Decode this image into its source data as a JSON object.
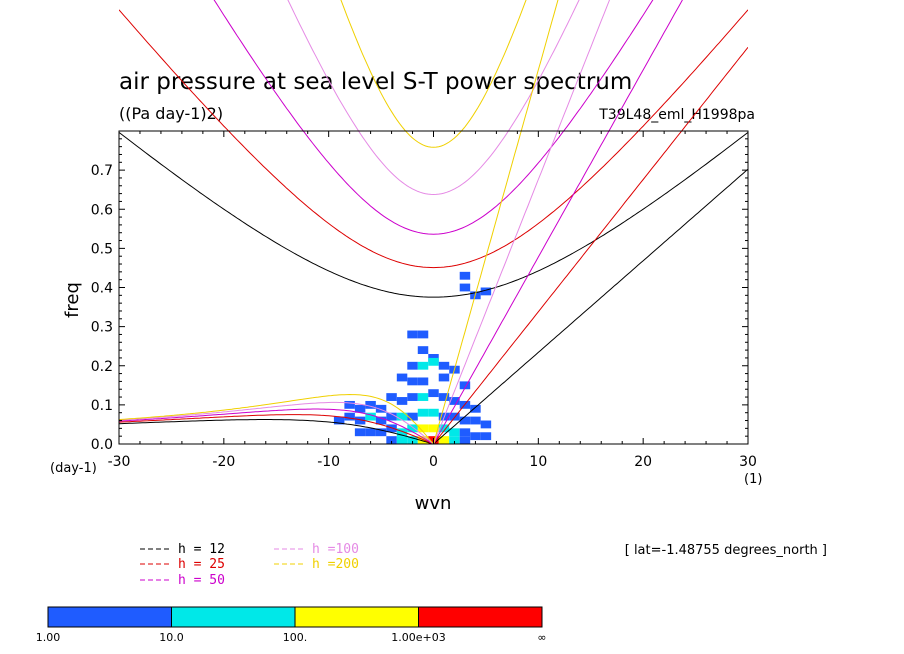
{
  "chart_data": {
    "type": "heatmap",
    "title": "air pressure at sea level S-T power spectrum",
    "units": "((Pa day-1)2)",
    "run_label": "T39L48_eml_H1998pa",
    "xlabel": "wvn",
    "ylabel": "freq",
    "y_unit_label": "(day-1)",
    "x_unit_label": "(1)",
    "xlim": [
      -30,
      30
    ],
    "ylim": [
      0,
      0.8
    ],
    "x_ticks": [
      "-30",
      "-20",
      "-10",
      "0",
      "10",
      "20",
      "30"
    ],
    "y_ticks": [
      "0.0",
      "0.1",
      "0.2",
      "0.3",
      "0.4",
      "0.5",
      "0.6",
      "0.7"
    ],
    "lat_note": "[ lat=-1.48755 degrees_north ]",
    "dispersion_legend": [
      {
        "label": "h = 12",
        "color": "#000000"
      },
      {
        "label": "h = 25",
        "color": "#dd0000"
      },
      {
        "label": "h = 50",
        "color": "#cc00cc"
      },
      {
        "label": "h =100",
        "color": "#e58ae5"
      },
      {
        "label": "h =200",
        "color": "#f0d000"
      }
    ],
    "colorbar": {
      "labels": [
        "1.00",
        "10.0",
        "100.",
        "1.00e+03",
        "∞"
      ],
      "colors": [
        "#1f5cff",
        "#00e8e8",
        "#ffff00",
        "#ff0000"
      ]
    },
    "spectrum_cells": [
      {
        "x": -2,
        "y": 0.28,
        "level": 0
      },
      {
        "x": -1,
        "y": 0.28,
        "level": 0
      },
      {
        "x": 3,
        "y": 0.4,
        "level": 0
      },
      {
        "x": 4,
        "y": 0.38,
        "level": 0
      },
      {
        "x": 3,
        "y": 0.43,
        "level": 0
      },
      {
        "x": 5,
        "y": 0.39,
        "level": 0
      },
      {
        "x": -1,
        "y": 0.24,
        "level": 0
      },
      {
        "x": 0,
        "y": 0.22,
        "level": 0
      },
      {
        "x": -2,
        "y": 0.2,
        "level": 0
      },
      {
        "x": -1,
        "y": 0.2,
        "level": 1
      },
      {
        "x": 0,
        "y": 0.21,
        "level": 1
      },
      {
        "x": 1,
        "y": 0.2,
        "level": 0
      },
      {
        "x": 2,
        "y": 0.19,
        "level": 0
      },
      {
        "x": -3,
        "y": 0.17,
        "level": 0
      },
      {
        "x": -2,
        "y": 0.16,
        "level": 0
      },
      {
        "x": -1,
        "y": 0.16,
        "level": 0
      },
      {
        "x": 1,
        "y": 0.17,
        "level": 0
      },
      {
        "x": 3,
        "y": 0.15,
        "level": 0
      },
      {
        "x": -4,
        "y": 0.12,
        "level": 0
      },
      {
        "x": -3,
        "y": 0.11,
        "level": 0
      },
      {
        "x": -2,
        "y": 0.12,
        "level": 0
      },
      {
        "x": -1,
        "y": 0.12,
        "level": 1
      },
      {
        "x": 0,
        "y": 0.13,
        "level": 0
      },
      {
        "x": 1,
        "y": 0.12,
        "level": 0
      },
      {
        "x": 2,
        "y": 0.11,
        "level": 0
      },
      {
        "x": 3,
        "y": 0.1,
        "level": 0
      },
      {
        "x": 4,
        "y": 0.09,
        "level": 0
      },
      {
        "x": -8,
        "y": 0.1,
        "level": 0
      },
      {
        "x": -7,
        "y": 0.09,
        "level": 0
      },
      {
        "x": -6,
        "y": 0.1,
        "level": 0
      },
      {
        "x": -5,
        "y": 0.09,
        "level": 0
      },
      {
        "x": -9,
        "y": 0.06,
        "level": 0
      },
      {
        "x": -8,
        "y": 0.07,
        "level": 0
      },
      {
        "x": -7,
        "y": 0.06,
        "level": 0
      },
      {
        "x": -6,
        "y": 0.07,
        "level": 1
      },
      {
        "x": -5,
        "y": 0.06,
        "level": 0
      },
      {
        "x": -4,
        "y": 0.07,
        "level": 0
      },
      {
        "x": -3,
        "y": 0.07,
        "level": 1
      },
      {
        "x": -2,
        "y": 0.07,
        "level": 0
      },
      {
        "x": -1,
        "y": 0.08,
        "level": 1
      },
      {
        "x": 0,
        "y": 0.08,
        "level": 1
      },
      {
        "x": 1,
        "y": 0.07,
        "level": 0
      },
      {
        "x": 2,
        "y": 0.07,
        "level": 0
      },
      {
        "x": 3,
        "y": 0.06,
        "level": 0
      },
      {
        "x": 4,
        "y": 0.06,
        "level": 0
      },
      {
        "x": 5,
        "y": 0.05,
        "level": 0
      },
      {
        "x": -7,
        "y": 0.03,
        "level": 0
      },
      {
        "x": -6,
        "y": 0.03,
        "level": 0
      },
      {
        "x": -5,
        "y": 0.03,
        "level": 0
      },
      {
        "x": -4,
        "y": 0.04,
        "level": 0
      },
      {
        "x": -3,
        "y": 0.03,
        "level": 1
      },
      {
        "x": -2,
        "y": 0.04,
        "level": 1
      },
      {
        "x": -1,
        "y": 0.04,
        "level": 2
      },
      {
        "x": 0,
        "y": 0.04,
        "level": 2
      },
      {
        "x": 1,
        "y": 0.04,
        "level": 1
      },
      {
        "x": 2,
        "y": 0.03,
        "level": 1
      },
      {
        "x": 3,
        "y": 0.03,
        "level": 0
      },
      {
        "x": 4,
        "y": 0.02,
        "level": 0
      },
      {
        "x": 5,
        "y": 0.02,
        "level": 0
      },
      {
        "x": -4,
        "y": 0.01,
        "level": 0
      },
      {
        "x": -3,
        "y": 0.01,
        "level": 1
      },
      {
        "x": -2,
        "y": 0.01,
        "level": 1
      },
      {
        "x": -1,
        "y": 0.01,
        "level": 2
      },
      {
        "x": 0,
        "y": 0.01,
        "level": 3
      },
      {
        "x": 1,
        "y": 0.01,
        "level": 2
      },
      {
        "x": 2,
        "y": 0.01,
        "level": 1
      },
      {
        "x": 3,
        "y": 0.01,
        "level": 0
      }
    ]
  }
}
